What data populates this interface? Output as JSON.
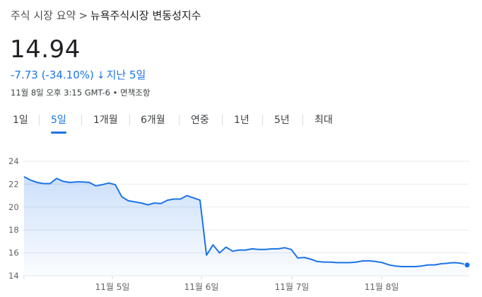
{
  "breadcrumb": {
    "parent": "주식 시장 요약",
    "separator": ">",
    "current": "뉴욕주식시장 변동성지수"
  },
  "quote": {
    "price": "14.94",
    "change": "-7.73 (-34.10%)",
    "change_arrow": "↓",
    "period": "지난 5일",
    "timestamp": "11월 8일 오후 3:15 GMT-6",
    "disclaimer": "면책조항",
    "down_color": "#1a73e8"
  },
  "tabs": [
    {
      "label": "1일",
      "active": false
    },
    {
      "label": "5일",
      "active": true
    },
    {
      "label": "1개월",
      "active": false
    },
    {
      "label": "6개월",
      "active": false
    },
    {
      "label": "연중",
      "active": false
    },
    {
      "label": "1년",
      "active": false
    },
    {
      "label": "5년",
      "active": false
    },
    {
      "label": "최대",
      "active": false
    }
  ],
  "chart_data": {
    "type": "area",
    "ylim": [
      14,
      24
    ],
    "yticks": [
      14,
      16,
      18,
      20,
      22,
      24
    ],
    "xticks": [
      "11월 5일",
      "11월 6일",
      "11월 7일",
      "11월 8일"
    ],
    "line_color": "#1a73e8",
    "grid": true,
    "values": [
      22.65,
      22.35,
      22.15,
      22.05,
      22.05,
      22.5,
      22.25,
      22.15,
      22.2,
      22.2,
      22.15,
      21.85,
      21.95,
      22.1,
      21.95,
      20.9,
      20.55,
      20.45,
      20.35,
      20.2,
      20.35,
      20.3,
      20.6,
      20.7,
      20.7,
      21.0,
      20.8,
      20.6,
      15.8,
      16.7,
      16.0,
      16.5,
      16.15,
      16.25,
      16.25,
      16.35,
      16.3,
      16.3,
      16.35,
      16.35,
      16.45,
      16.3,
      15.55,
      15.6,
      15.45,
      15.25,
      15.2,
      15.2,
      15.15,
      15.15,
      15.15,
      15.2,
      15.3,
      15.3,
      15.25,
      15.15,
      14.95,
      14.85,
      14.8,
      14.8,
      14.8,
      14.85,
      14.95,
      14.95,
      15.05,
      15.1,
      15.15,
      15.1,
      14.94
    ]
  }
}
